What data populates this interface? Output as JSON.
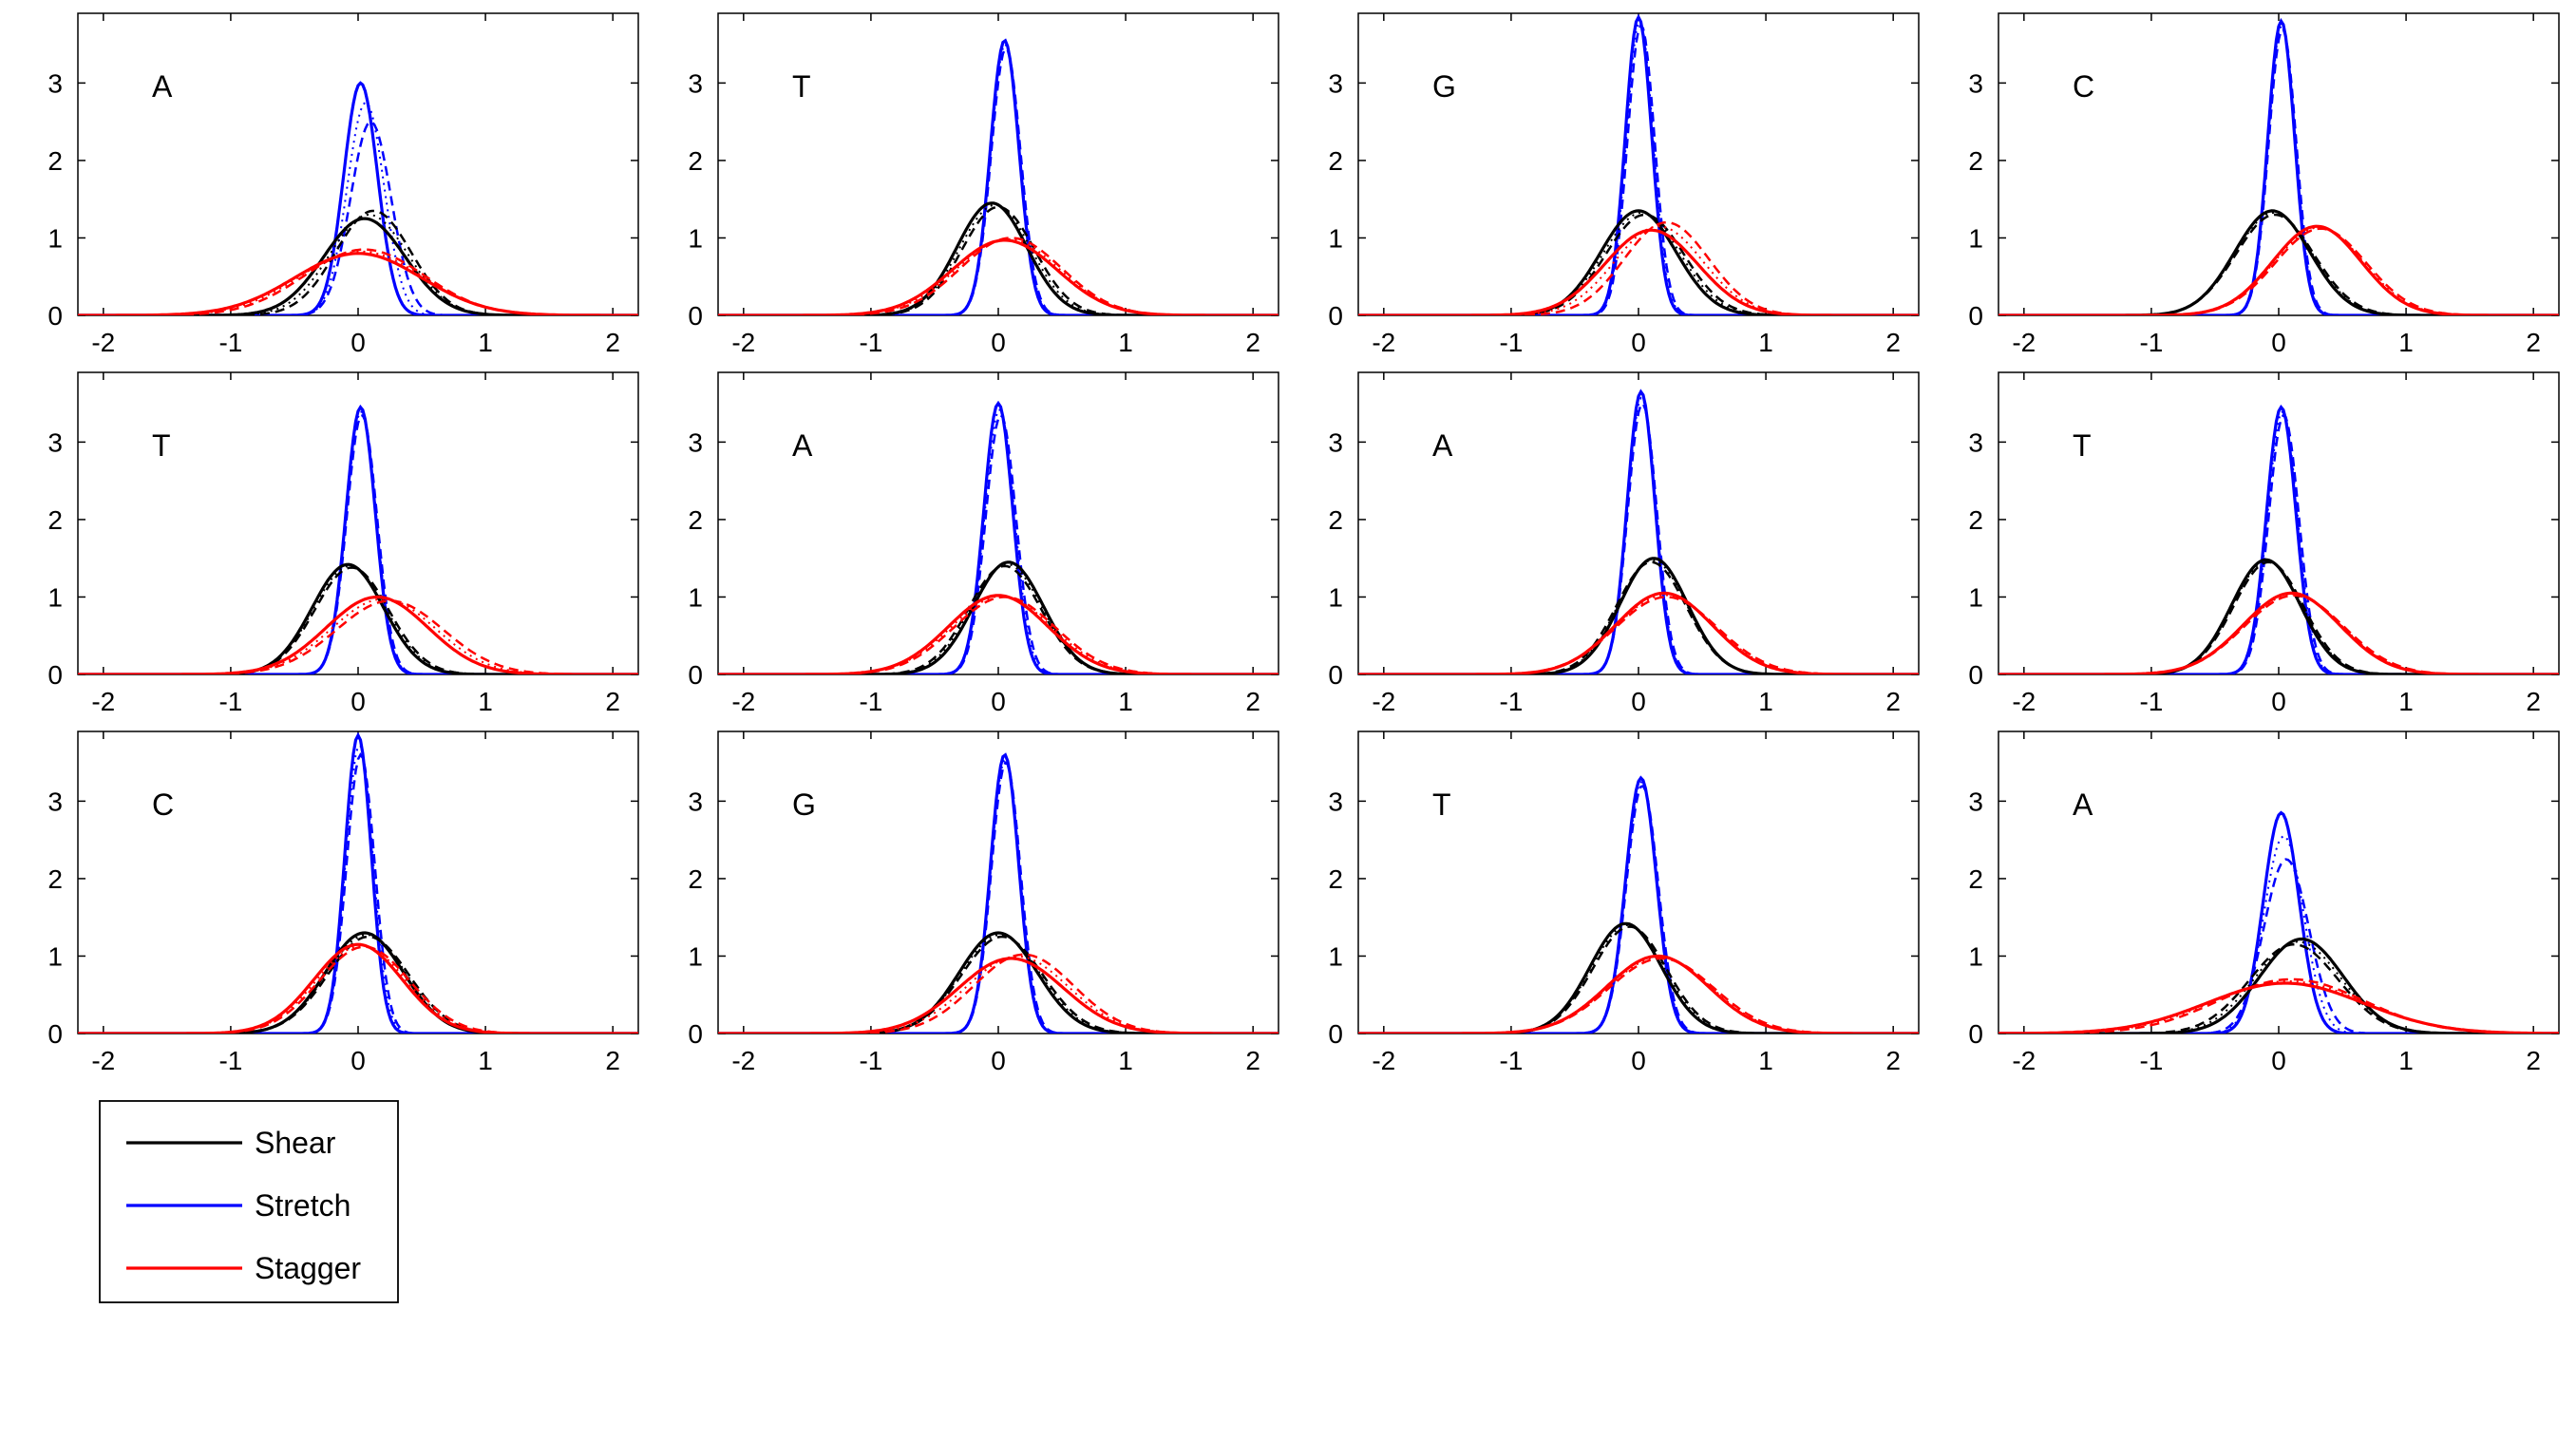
{
  "chart_data": {
    "type": "line",
    "layout": "3 rows x 4 columns of panels",
    "xlim": [
      -2.2,
      2.2
    ],
    "ylim": [
      0,
      3.9
    ],
    "xticks": [
      "-2",
      "-1",
      "0",
      "1",
      "2"
    ],
    "yticks": [
      "0",
      "1",
      "2",
      "3"
    ],
    "grid": false,
    "legend": {
      "placement": "below the first panel",
      "entries": [
        {
          "label": "Shear",
          "color": "#000000"
        },
        {
          "label": "Stretch",
          "color": "#0000ff"
        },
        {
          "label": "Stagger",
          "color": "#ff0000"
        }
      ]
    },
    "colors": {
      "shear": "#000000",
      "stretch": "#0000ff",
      "stagger": "#ff0000"
    },
    "panels": [
      {
        "label": "A",
        "series": [
          {
            "name": "Shear",
            "peak": 1.25,
            "mean": 0.05,
            "alt_peak": 1.35,
            "alt_mean": 0.12
          },
          {
            "name": "Stretch",
            "peak": 3.0,
            "mean": 0.02,
            "alt_peak": 2.5,
            "alt_mean": 0.1
          },
          {
            "name": "Stagger",
            "peak": 0.8,
            "mean": 0.0,
            "alt_peak": 0.85,
            "alt_mean": 0.05
          }
        ]
      },
      {
        "label": "T",
        "series": [
          {
            "name": "Shear",
            "peak": 1.45,
            "mean": -0.05,
            "alt_peak": 1.4,
            "alt_mean": 0.0
          },
          {
            "name": "Stretch",
            "peak": 3.55,
            "mean": 0.05,
            "alt_peak": 3.45,
            "alt_mean": 0.06
          },
          {
            "name": "Stagger",
            "peak": 0.97,
            "mean": 0.05,
            "alt_peak": 1.0,
            "alt_mean": 0.1
          }
        ]
      },
      {
        "label": "G",
        "series": [
          {
            "name": "Shear",
            "peak": 1.35,
            "mean": 0.0,
            "alt_peak": 1.3,
            "alt_mean": 0.05
          },
          {
            "name": "Stretch",
            "peak": 3.85,
            "mean": 0.0,
            "alt_peak": 3.75,
            "alt_mean": 0.02
          },
          {
            "name": "Stagger",
            "peak": 1.1,
            "mean": 0.1,
            "alt_peak": 1.2,
            "alt_mean": 0.22
          }
        ]
      },
      {
        "label": "C",
        "series": [
          {
            "name": "Shear",
            "peak": 1.35,
            "mean": -0.05,
            "alt_peak": 1.3,
            "alt_mean": -0.03
          },
          {
            "name": "Stretch",
            "peak": 3.8,
            "mean": 0.02,
            "alt_peak": 3.7,
            "alt_mean": 0.03
          },
          {
            "name": "Stagger",
            "peak": 1.15,
            "mean": 0.3,
            "alt_peak": 1.12,
            "alt_mean": 0.33
          }
        ]
      },
      {
        "label": "T",
        "series": [
          {
            "name": "Shear",
            "peak": 1.42,
            "mean": -0.08,
            "alt_peak": 1.38,
            "alt_mean": -0.05
          },
          {
            "name": "Stretch",
            "peak": 3.45,
            "mean": 0.02,
            "alt_peak": 3.35,
            "alt_mean": 0.03
          },
          {
            "name": "Stagger",
            "peak": 1.0,
            "mean": 0.15,
            "alt_peak": 0.95,
            "alt_mean": 0.25
          }
        ]
      },
      {
        "label": "A",
        "series": [
          {
            "name": "Shear",
            "peak": 1.45,
            "mean": 0.08,
            "alt_peak": 1.4,
            "alt_mean": 0.05
          },
          {
            "name": "Stretch",
            "peak": 3.5,
            "mean": 0.0,
            "alt_peak": 3.35,
            "alt_mean": 0.02
          },
          {
            "name": "Stagger",
            "peak": 1.02,
            "mean": 0.0,
            "alt_peak": 1.0,
            "alt_mean": 0.05
          }
        ]
      },
      {
        "label": "A",
        "series": [
          {
            "name": "Shear",
            "peak": 1.5,
            "mean": 0.12,
            "alt_peak": 1.45,
            "alt_mean": 0.1
          },
          {
            "name": "Stretch",
            "peak": 3.65,
            "mean": 0.02,
            "alt_peak": 3.5,
            "alt_mean": 0.03
          },
          {
            "name": "Stagger",
            "peak": 1.05,
            "mean": 0.2,
            "alt_peak": 1.0,
            "alt_mean": 0.22
          }
        ]
      },
      {
        "label": "T",
        "series": [
          {
            "name": "Shear",
            "peak": 1.48,
            "mean": -0.1,
            "alt_peak": 1.45,
            "alt_mean": -0.08
          },
          {
            "name": "Stretch",
            "peak": 3.45,
            "mean": 0.02,
            "alt_peak": 3.35,
            "alt_mean": 0.04
          },
          {
            "name": "Stagger",
            "peak": 1.05,
            "mean": 0.1,
            "alt_peak": 1.02,
            "alt_mean": 0.12
          }
        ]
      },
      {
        "label": "C",
        "series": [
          {
            "name": "Shear",
            "peak": 1.3,
            "mean": 0.05,
            "alt_peak": 1.25,
            "alt_mean": 0.08
          },
          {
            "name": "Stretch",
            "peak": 3.85,
            "mean": 0.0,
            "alt_peak": 3.6,
            "alt_mean": 0.02
          },
          {
            "name": "Stagger",
            "peak": 1.15,
            "mean": 0.0,
            "alt_peak": 1.12,
            "alt_mean": 0.05
          }
        ]
      },
      {
        "label": "G",
        "series": [
          {
            "name": "Shear",
            "peak": 1.3,
            "mean": 0.0,
            "alt_peak": 1.25,
            "alt_mean": 0.03
          },
          {
            "name": "Stretch",
            "peak": 3.6,
            "mean": 0.05,
            "alt_peak": 3.5,
            "alt_mean": 0.06
          },
          {
            "name": "Stagger",
            "peak": 0.97,
            "mean": 0.1,
            "alt_peak": 1.02,
            "alt_mean": 0.2
          }
        ]
      },
      {
        "label": "T",
        "series": [
          {
            "name": "Shear",
            "peak": 1.42,
            "mean": -0.1,
            "alt_peak": 1.38,
            "alt_mean": -0.07
          },
          {
            "name": "Stretch",
            "peak": 3.3,
            "mean": 0.02,
            "alt_peak": 3.2,
            "alt_mean": 0.03
          },
          {
            "name": "Stagger",
            "peak": 1.0,
            "mean": 0.15,
            "alt_peak": 0.97,
            "alt_mean": 0.18
          }
        ]
      },
      {
        "label": "A",
        "series": [
          {
            "name": "Shear",
            "peak": 1.22,
            "mean": 0.18,
            "alt_peak": 1.15,
            "alt_mean": 0.12
          },
          {
            "name": "Stretch",
            "peak": 2.85,
            "mean": 0.02,
            "alt_peak": 2.25,
            "alt_mean": 0.06
          },
          {
            "name": "Stagger",
            "peak": 0.65,
            "mean": 0.05,
            "alt_peak": 0.7,
            "alt_mean": 0.1
          }
        ]
      }
    ]
  }
}
